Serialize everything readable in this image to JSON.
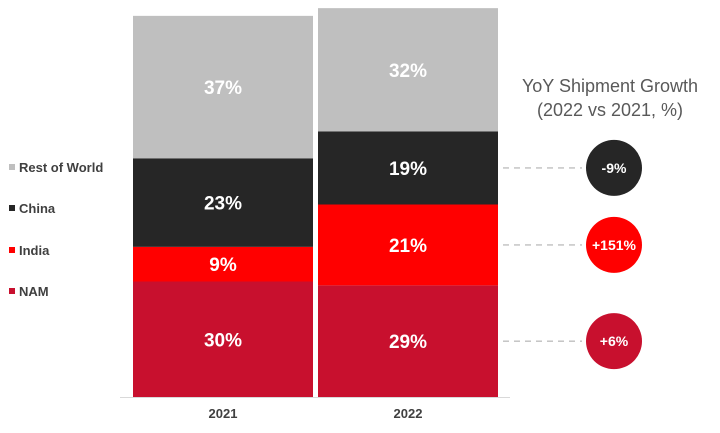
{
  "chart_data": {
    "type": "bar",
    "stacked": true,
    "normalized": true,
    "categories": [
      "2021",
      "2022"
    ],
    "series": [
      {
        "name": "NAM",
        "values": [
          30,
          29
        ],
        "labels": [
          "30%",
          "29%"
        ],
        "color": "#C8102E"
      },
      {
        "name": "India",
        "values": [
          9,
          21
        ],
        "labels": [
          "9%",
          "21%"
        ],
        "color": "#FF0000"
      },
      {
        "name": "China",
        "values": [
          23,
          19
        ],
        "labels": [
          "23%",
          "19%"
        ],
        "color": "#262626"
      },
      {
        "name": "Rest of World",
        "values": [
          37,
          32
        ],
        "labels": [
          "37%",
          "32%"
        ],
        "color": "#BFBFBF"
      }
    ],
    "legend_order": [
      "Rest of World",
      "China",
      "India",
      "NAM"
    ],
    "legend_position": "left",
    "ylim": [
      0,
      100
    ],
    "yaxis_visible": false,
    "grid": false,
    "growth": {
      "title_lines": [
        "YoY Shipment Growth",
        "(2022 vs 2021, %)"
      ],
      "items": [
        {
          "series": "China",
          "label": "-9%",
          "color": "#262626"
        },
        {
          "series": "India",
          "label": "+151%",
          "color": "#FF0000"
        },
        {
          "series": "NAM",
          "label": "+6%",
          "color": "#C8102E"
        }
      ]
    }
  }
}
